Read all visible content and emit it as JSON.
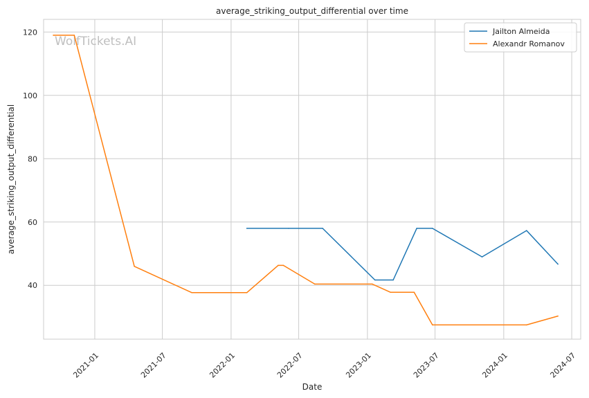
{
  "chart_data": {
    "type": "line",
    "title": "average_striking_output_differential over time",
    "xlabel": "Date",
    "ylabel": "average_striking_output_differential",
    "watermark": "WolfTickets.AI",
    "x_ticks": [
      "2021-01",
      "2021-07",
      "2022-01",
      "2022-07",
      "2023-01",
      "2023-07",
      "2024-01",
      "2024-07"
    ],
    "y_ticks": [
      40,
      60,
      80,
      100,
      120
    ],
    "xlim": [
      "2020-08-17",
      "2024-07-25"
    ],
    "ylim": [
      23,
      124
    ],
    "grid": true,
    "legend_position": "top-right",
    "series": [
      {
        "name": "Jailton Almeida",
        "color": "#1f77b4",
        "points": [
          {
            "date": "2022-02-12",
            "value": 58.0
          },
          {
            "date": "2022-06-04",
            "value": 58.0
          },
          {
            "date": "2022-09-03",
            "value": 58.0
          },
          {
            "date": "2023-01-21",
            "value": 41.7
          },
          {
            "date": "2023-03-11",
            "value": 41.7
          },
          {
            "date": "2023-05-13",
            "value": 58.0
          },
          {
            "date": "2023-06-24",
            "value": 58.0
          },
          {
            "date": "2023-11-04",
            "value": 49.0
          },
          {
            "date": "2024-03-02",
            "value": 57.3
          },
          {
            "date": "2024-05-25",
            "value": 46.7
          }
        ]
      },
      {
        "name": "Alexandr Romanov",
        "color": "#ff7f0e",
        "points": [
          {
            "date": "2020-09-12",
            "value": 119.0
          },
          {
            "date": "2020-11-07",
            "value": 119.0
          },
          {
            "date": "2021-04-17",
            "value": 46.0
          },
          {
            "date": "2021-09-18",
            "value": 37.7
          },
          {
            "date": "2022-02-12",
            "value": 37.7
          },
          {
            "date": "2022-05-07",
            "value": 46.3
          },
          {
            "date": "2022-05-21",
            "value": 46.3
          },
          {
            "date": "2022-08-13",
            "value": 40.4
          },
          {
            "date": "2023-01-14",
            "value": 40.4
          },
          {
            "date": "2023-03-04",
            "value": 37.8
          },
          {
            "date": "2023-05-06",
            "value": 37.8
          },
          {
            "date": "2023-06-24",
            "value": 27.5
          },
          {
            "date": "2024-03-02",
            "value": 27.5
          },
          {
            "date": "2024-05-25",
            "value": 30.3
          }
        ]
      }
    ]
  }
}
